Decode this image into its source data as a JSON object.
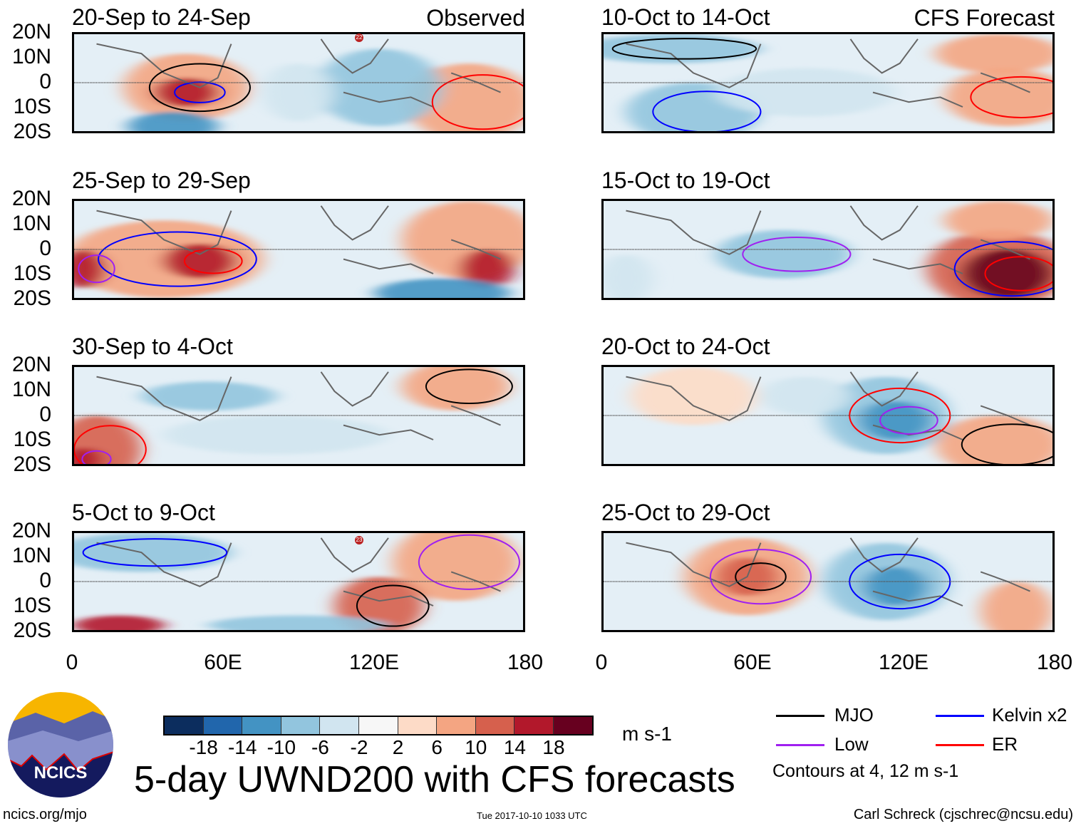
{
  "panels": {
    "left": [
      {
        "title": "20-Sep to 24-Sep",
        "tag": "Observed",
        "storm": "22"
      },
      {
        "title": "25-Sep to 29-Sep"
      },
      {
        "title": "30-Sep to 4-Oct"
      },
      {
        "title": "5-Oct to 9-Oct",
        "storm": "23"
      }
    ],
    "right": [
      {
        "title": "10-Oct to 14-Oct",
        "tag": "CFS Forecast"
      },
      {
        "title": "15-Oct to 19-Oct"
      },
      {
        "title": "20-Oct to 24-Oct"
      },
      {
        "title": "25-Oct to 29-Oct"
      }
    ]
  },
  "axes": {
    "lat_labels": [
      "20N",
      "10N",
      "0",
      "10S",
      "20S"
    ],
    "lon_labels": [
      "0",
      "60E",
      "120E",
      "180"
    ]
  },
  "colorbar": {
    "ticks": [
      "-18",
      "-14",
      "-10",
      "-6",
      "-2",
      "2",
      "6",
      "10",
      "14",
      "18"
    ],
    "colors": [
      "#0c2d5e",
      "#2166ac",
      "#4393c3",
      "#92c5de",
      "#d1e5f0",
      "#f7f7f7",
      "#fddbc7",
      "#f4a582",
      "#d6604d",
      "#b2182b",
      "#67001f"
    ],
    "units": "m s-1"
  },
  "legend": {
    "items": [
      {
        "label": "MJO",
        "color": "#000000"
      },
      {
        "label": "Kelvin x2",
        "color": "#0000ff"
      },
      {
        "label": "Low",
        "color": "#a020f0"
      },
      {
        "label": "ER",
        "color": "#ff0000"
      }
    ],
    "note": "Contours at 4, 12 m s-1"
  },
  "footer": {
    "title": "5-day UWND200 with CFS forecasts",
    "url": "ncics.org/mjo",
    "timestamp": "Tue 2017-10-10 1033 UTC",
    "author": "Carl Schreck (cjschrec@ncsu.edu)",
    "logo_text": "NCICS"
  }
}
